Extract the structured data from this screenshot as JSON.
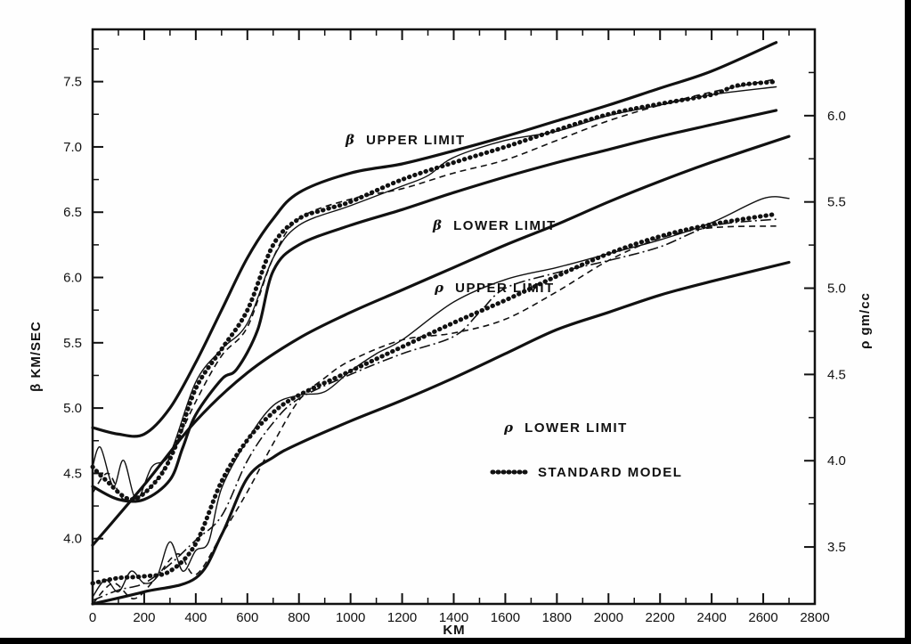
{
  "chart_data": {
    "type": "line",
    "title": "",
    "xlabel": "KM",
    "ylabel_left": "β KM/SEC",
    "ylabel_right": "ρ gm/cc",
    "xlim": [
      0,
      2800
    ],
    "ylim_left": [
      3.5,
      7.9
    ],
    "ylim_right": [
      3.17,
      6.5
    ],
    "x_ticks": [
      "0",
      "200",
      "400",
      "600",
      "800",
      "1000",
      "1200",
      "1400",
      "1600",
      "1800",
      "2000",
      "2200",
      "2400",
      "2600",
      "2800"
    ],
    "y_left_ticks": [
      "4.0",
      "4.5",
      "5.0",
      "5.5",
      "6.0",
      "6.5",
      "7.0",
      "7.5"
    ],
    "y_right_ticks": [
      "3.5",
      "4.0",
      "4.5",
      "5.0",
      "5.5",
      "6.0"
    ],
    "grid": false,
    "annotations": {
      "beta_upper": {
        "symbol": "β",
        "text": "UPPER LIMIT"
      },
      "beta_lower": {
        "symbol": "β",
        "text": "LOWER LIMIT"
      },
      "rho_upper": {
        "symbol": "ρ",
        "text": "UPPER LIMIT"
      },
      "rho_lower": {
        "symbol": "ρ",
        "text": "LOWER LIMIT"
      },
      "standard_model": "STANDARD MODEL"
    },
    "series": [
      {
        "axis": "left",
        "style": "limit",
        "x": [
          0,
          100,
          200,
          300,
          400,
          500,
          600,
          700,
          800,
          1000,
          1200,
          1400,
          1600,
          1800,
          2000,
          2200,
          2400,
          2650
        ],
        "y": [
          4.85,
          4.8,
          4.8,
          5.0,
          5.35,
          5.75,
          6.15,
          6.45,
          6.65,
          6.8,
          6.87,
          6.97,
          7.08,
          7.2,
          7.32,
          7.45,
          7.58,
          7.8
        ]
      },
      {
        "axis": "left",
        "style": "limit",
        "x": [
          0,
          100,
          200,
          300,
          350,
          400,
          500,
          560,
          640,
          700,
          800,
          1000,
          1200,
          1400,
          1600,
          1800,
          2000,
          2200,
          2400,
          2650
        ],
        "y": [
          4.4,
          4.3,
          4.3,
          4.45,
          4.7,
          4.95,
          5.22,
          5.3,
          5.6,
          6.05,
          6.25,
          6.4,
          6.52,
          6.65,
          6.77,
          6.88,
          6.98,
          7.08,
          7.17,
          7.28
        ]
      },
      {
        "axis": "left",
        "style": "model-dotted",
        "x": [
          0,
          50,
          150,
          250,
          320,
          400,
          500,
          600,
          700,
          800,
          900,
          1000,
          1200,
          1400,
          1600,
          1800,
          2000,
          2200,
          2400,
          2500,
          2650
        ],
        "y": [
          4.55,
          4.45,
          4.3,
          4.45,
          4.7,
          5.15,
          5.45,
          5.75,
          6.25,
          6.45,
          6.52,
          6.58,
          6.75,
          6.88,
          7.0,
          7.13,
          7.25,
          7.33,
          7.4,
          7.47,
          7.5
        ]
      },
      {
        "axis": "left",
        "style": "model-thin",
        "x": [
          0,
          30,
          80,
          120,
          170,
          230,
          300,
          400,
          500,
          600,
          700,
          800,
          1000,
          1200,
          1300,
          1400,
          1600,
          1800,
          2000,
          2200,
          2400,
          2650
        ],
        "y": [
          4.55,
          4.7,
          4.4,
          4.6,
          4.3,
          4.55,
          4.65,
          5.2,
          5.45,
          5.65,
          6.15,
          6.4,
          6.55,
          6.7,
          6.78,
          6.92,
          7.05,
          7.12,
          7.24,
          7.32,
          7.4,
          7.46
        ]
      },
      {
        "axis": "left",
        "style": "model-dashed",
        "x": [
          0,
          60,
          120,
          200,
          280,
          400,
          500,
          600,
          700,
          800,
          1000,
          1200,
          1400,
          1600,
          1800,
          2000,
          2200,
          2400,
          2650
        ],
        "y": [
          4.35,
          4.5,
          4.3,
          4.35,
          4.55,
          5.05,
          5.4,
          5.62,
          6.15,
          6.45,
          6.6,
          6.68,
          6.8,
          6.9,
          7.05,
          7.2,
          7.32,
          7.42,
          7.52
        ]
      },
      {
        "axis": "right",
        "style": "limit",
        "x": [
          0,
          200,
          400,
          600,
          800,
          1000,
          1200,
          1400,
          1600,
          1800,
          2000,
          2200,
          2400,
          2700
        ],
        "y": [
          3.51,
          3.86,
          4.23,
          4.51,
          4.71,
          4.86,
          4.99,
          5.12,
          5.25,
          5.37,
          5.5,
          5.62,
          5.73,
          5.88
        ]
      },
      {
        "axis": "right",
        "style": "limit",
        "x": [
          0,
          200,
          400,
          500,
          600,
          700,
          800,
          1000,
          1200,
          1400,
          1600,
          1800,
          2000,
          2200,
          2400,
          2700
        ],
        "y": [
          3.17,
          3.24,
          3.32,
          3.57,
          3.9,
          4.02,
          4.1,
          4.23,
          4.35,
          4.48,
          4.62,
          4.76,
          4.86,
          4.96,
          5.04,
          5.15
        ]
      },
      {
        "axis": "right",
        "style": "model-dotted",
        "x": [
          0,
          100,
          200,
          300,
          400,
          500,
          600,
          700,
          800,
          1000,
          1200,
          1400,
          1600,
          1800,
          2000,
          2200,
          2400,
          2650
        ],
        "y": [
          3.29,
          3.32,
          3.33,
          3.36,
          3.52,
          3.88,
          4.12,
          4.28,
          4.38,
          4.52,
          4.66,
          4.8,
          4.93,
          5.07,
          5.2,
          5.3,
          5.37,
          5.43
        ]
      },
      {
        "axis": "right",
        "style": "model-thin",
        "x": [
          0,
          50,
          100,
          150,
          200,
          250,
          300,
          350,
          400,
          450,
          500,
          600,
          700,
          800,
          900,
          1000,
          1100,
          1200,
          1400,
          1600,
          1800,
          2000,
          2200,
          2400,
          2600,
          2700
        ],
        "y": [
          3.21,
          3.31,
          3.24,
          3.36,
          3.29,
          3.33,
          3.53,
          3.36,
          3.48,
          3.53,
          3.84,
          4.12,
          4.32,
          4.38,
          4.4,
          4.52,
          4.62,
          4.7,
          4.92,
          5.05,
          5.12,
          5.2,
          5.28,
          5.38,
          5.52,
          5.52
        ]
      },
      {
        "axis": "right",
        "style": "model-dashed",
        "x": [
          0,
          80,
          160,
          240,
          330,
          400,
          500,
          600,
          700,
          800,
          900,
          1000,
          1200,
          1400,
          1600,
          1800,
          2000,
          2200,
          2400,
          2650
        ],
        "y": [
          3.17,
          3.29,
          3.2,
          3.31,
          3.46,
          3.34,
          3.57,
          3.82,
          4.1,
          4.35,
          4.48,
          4.58,
          4.7,
          4.74,
          4.82,
          4.98,
          5.16,
          5.29,
          5.35,
          5.36
        ]
      },
      {
        "axis": "right",
        "style": "model-dashdot",
        "x": [
          0,
          100,
          200,
          300,
          400,
          500,
          600,
          700,
          800,
          1000,
          1200,
          1400,
          1500,
          1600,
          1800,
          2000,
          2200,
          2400,
          2650
        ],
        "y": [
          3.19,
          3.25,
          3.29,
          3.4,
          3.54,
          3.68,
          4.0,
          4.22,
          4.36,
          4.5,
          4.62,
          4.72,
          4.86,
          5.0,
          5.09,
          5.16,
          5.24,
          5.36,
          5.4
        ]
      }
    ]
  }
}
